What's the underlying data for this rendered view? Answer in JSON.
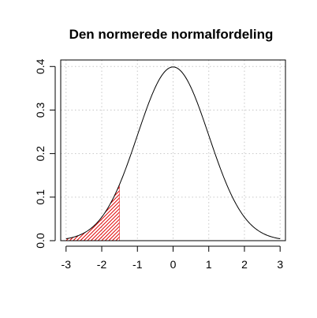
{
  "chart_data": {
    "type": "line",
    "title": "Den normerede normalfordeling",
    "xlabel": "",
    "ylabel": "",
    "xlim": [
      -3.15,
      3.15
    ],
    "ylim": [
      0,
      0.415
    ],
    "x_ticks": [
      -3,
      -2,
      -1,
      0,
      1,
      2,
      3
    ],
    "x_tick_labels": [
      "-3",
      "-2",
      "-1",
      "0",
      "1",
      "2",
      "3"
    ],
    "y_ticks": [
      0.0,
      0.1,
      0.2,
      0.3,
      0.4
    ],
    "y_tick_labels": [
      "0.0",
      "0.1",
      "0.2",
      "0.3",
      "0.4"
    ],
    "grid": true,
    "series": [
      {
        "function": "standard normal density",
        "mean": 0,
        "sd": 1,
        "x_range": [
          -3,
          3
        ],
        "color": "#000000"
      }
    ],
    "shaded_region": {
      "x_from": -3,
      "x_to": -1.5,
      "style": "hatched",
      "color": "#e00000"
    }
  }
}
